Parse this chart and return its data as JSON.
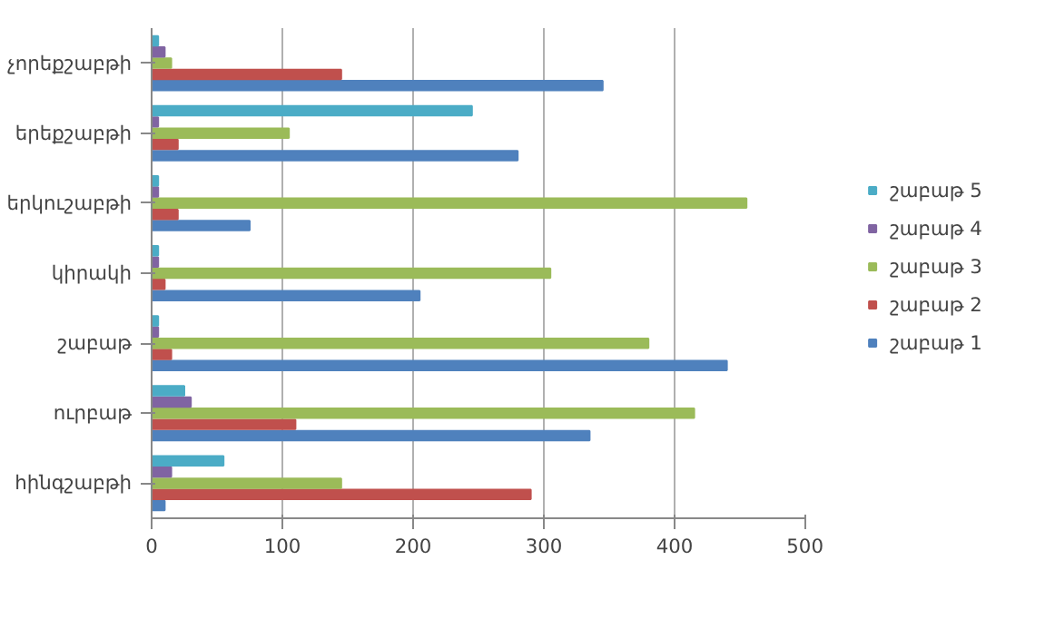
{
  "chart_data": {
    "type": "bar",
    "orientation": "horizontal",
    "categories": [
      "չորեքշաբթի",
      "երեքշաբթի",
      "երկուշաբթի",
      "կիրակի",
      "շաբաթ",
      "ուրբաթ",
      "հինգշաբթի"
    ],
    "series": [
      {
        "name": "շաբաթ 1",
        "color": "#4f81bd",
        "values": [
          345,
          280,
          75,
          205,
          440,
          335,
          10
        ]
      },
      {
        "name": "շաբաթ 2",
        "color": "#c0504d",
        "values": [
          145,
          20,
          20,
          10,
          15,
          110,
          290
        ]
      },
      {
        "name": "շաբաթ 3",
        "color": "#9bbb59",
        "values": [
          15,
          105,
          455,
          305,
          380,
          415,
          145
        ]
      },
      {
        "name": "շաբաթ 4",
        "color": "#8064a2",
        "values": [
          10,
          5,
          5,
          5,
          5,
          30,
          15
        ]
      },
      {
        "name": "շաբաթ 5",
        "color": "#4bacc6",
        "values": [
          5,
          245,
          5,
          5,
          5,
          25,
          55
        ]
      }
    ],
    "xlim": [
      0,
      500
    ],
    "xticks": [
      0,
      100,
      200,
      300,
      400,
      500
    ],
    "grid": "x",
    "legend": "right"
  }
}
